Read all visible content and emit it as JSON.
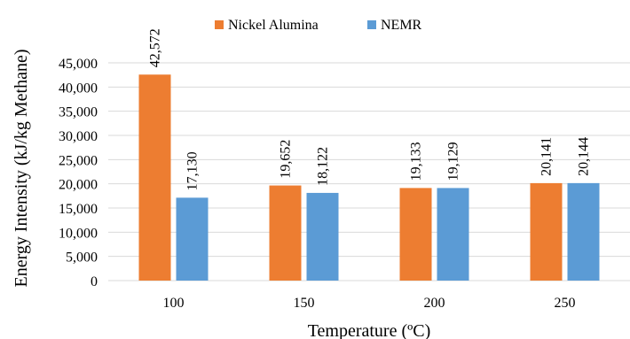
{
  "chart_data": {
    "type": "bar",
    "title": "",
    "xlabel": "Temperature (ºC)",
    "ylabel": "Energy Intensity (kJ/kg Methane)",
    "categories": [
      "100",
      "150",
      "200",
      "250"
    ],
    "series": [
      {
        "name": "Nickel Alumina",
        "color": "#ED7D31",
        "values": [
          42572,
          19652,
          19133,
          20141
        ],
        "labels": [
          "42,572",
          "19,652",
          "19,133",
          "20,141"
        ]
      },
      {
        "name": "NEMR",
        "color": "#5B9BD5",
        "values": [
          17130,
          18122,
          19129,
          20144
        ],
        "labels": [
          "17,130",
          "18,122",
          "19,129",
          "20,144"
        ]
      }
    ],
    "ylim": [
      0,
      45000
    ],
    "yticks": [
      0,
      5000,
      10000,
      15000,
      20000,
      25000,
      30000,
      35000,
      40000,
      45000
    ],
    "ytick_labels": [
      "0",
      "5,000",
      "10,000",
      "15,000",
      "20,000",
      "25,000",
      "30,000",
      "35,000",
      "40,000",
      "45,000"
    ],
    "grid": true,
    "grid_color": "#D9D9D9",
    "legend_position": "top"
  }
}
